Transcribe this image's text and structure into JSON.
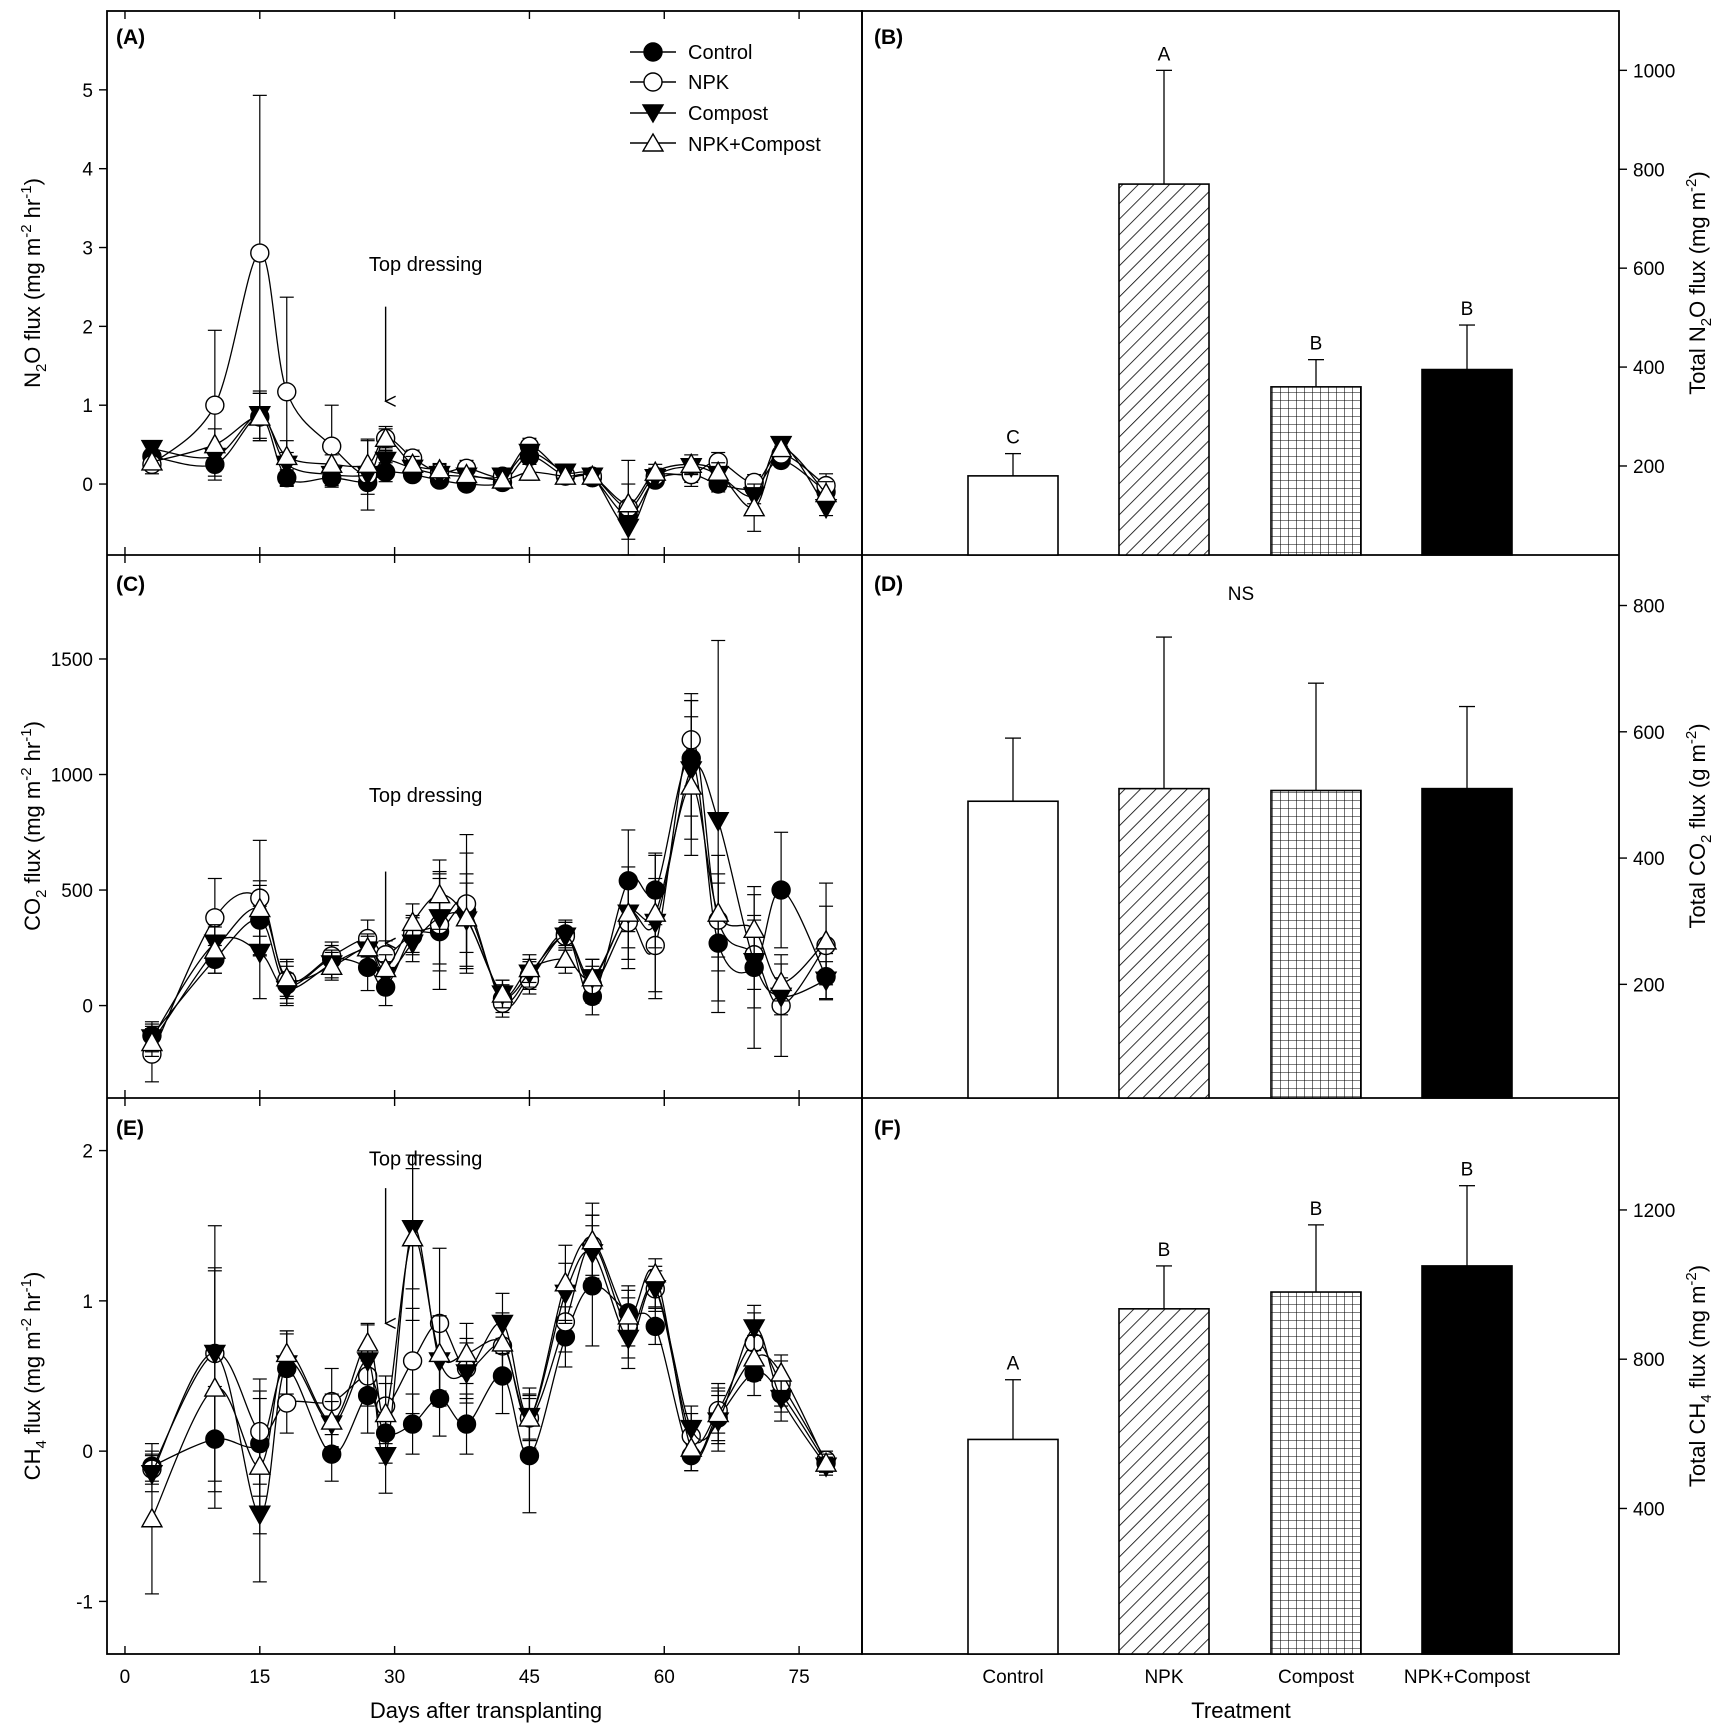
{
  "figure": {
    "x_axis_label": "Days after transplanting",
    "treatment_axis_label": "Treatment",
    "treatments": [
      "Control",
      "NPK",
      "Compost",
      "NPK+Compost"
    ],
    "annotation": "Top dressing",
    "legend": [
      {
        "name": "Control",
        "marker": "filled-circle"
      },
      {
        "name": "NPK",
        "marker": "open-circle"
      },
      {
        "name": "Compost",
        "marker": "filled-triangle-down"
      },
      {
        "name": "NPK+Compost",
        "marker": "open-triangle-up"
      }
    ]
  },
  "chart_data": [
    {
      "panel": "(A)",
      "type": "line",
      "ylabel": "N2O flux (mg m-2 hr-1)",
      "xlim": [
        -2,
        82
      ],
      "ylim": [
        -0.9,
        6
      ],
      "xticks": [
        0,
        15,
        30,
        45,
        60,
        75
      ],
      "yticks": [
        0,
        1,
        2,
        3,
        4,
        5
      ],
      "annotation": {
        "text": "Top dressing",
        "x": 29,
        "y_text": 2.7,
        "y_arrow_top": 2.25,
        "y_arrow_tip": 1.05
      },
      "x": [
        3,
        10,
        15,
        18,
        23,
        27,
        29,
        32,
        35,
        38,
        42,
        45,
        49,
        52,
        56,
        59,
        63,
        66,
        70,
        73,
        78
      ],
      "series": [
        {
          "name": "Control",
          "marker": "filled-circle",
          "values": [
            0.35,
            0.25,
            0.85,
            0.08,
            0.08,
            0.02,
            0.15,
            0.12,
            0.05,
            0.0,
            0.02,
            0.35,
            0.1,
            0.08,
            -0.4,
            0.05,
            0.12,
            0.0,
            -0.05,
            0.3,
            -0.1
          ],
          "errors": [
            0.08,
            0.15,
            0.3,
            0.1,
            0.1,
            0.15,
            0.12,
            0.08,
            0.08,
            0.08,
            0.08,
            0.1,
            0.08,
            0.08,
            0.1,
            0.08,
            0.1,
            0.1,
            0.08,
            0.08,
            0.1
          ]
        },
        {
          "name": "NPK",
          "marker": "open-circle",
          "values": [
            0.25,
            1.0,
            2.93,
            1.17,
            0.48,
            0.12,
            0.58,
            0.33,
            0.15,
            0.2,
            0.1,
            0.48,
            0.12,
            0.1,
            -0.3,
            0.1,
            0.12,
            0.28,
            0.02,
            0.38,
            -0.02
          ],
          "errors": [
            0.12,
            0.95,
            2.0,
            1.2,
            0.52,
            0.45,
            0.15,
            0.1,
            0.1,
            0.1,
            0.08,
            0.1,
            0.08,
            0.08,
            0.6,
            0.1,
            0.15,
            0.12,
            0.1,
            0.1,
            0.15
          ]
        },
        {
          "name": "Compost",
          "marker": "filled-triangle-down",
          "values": [
            0.45,
            0.35,
            0.88,
            0.25,
            0.12,
            0.12,
            0.3,
            0.2,
            0.12,
            0.1,
            0.1,
            0.4,
            0.15,
            0.1,
            -0.55,
            0.08,
            0.22,
            0.12,
            -0.15,
            0.5,
            -0.3
          ],
          "errors": [
            0.08,
            0.1,
            0.3,
            0.15,
            0.1,
            0.1,
            0.12,
            0.08,
            0.08,
            0.08,
            0.08,
            0.1,
            0.08,
            0.08,
            0.15,
            0.08,
            0.1,
            0.1,
            0.1,
            0.08,
            0.1
          ]
        },
        {
          "name": "NPK+Compost",
          "marker": "open-triangle-up",
          "values": [
            0.28,
            0.5,
            0.85,
            0.35,
            0.25,
            0.25,
            0.58,
            0.25,
            0.18,
            0.12,
            0.05,
            0.15,
            0.1,
            0.1,
            -0.25,
            0.15,
            0.25,
            0.15,
            -0.3,
            0.45,
            -0.12
          ],
          "errors": [
            0.1,
            0.2,
            0.3,
            0.2,
            0.12,
            0.3,
            0.12,
            0.1,
            0.08,
            0.08,
            0.08,
            0.1,
            0.08,
            0.08,
            0.25,
            0.1,
            0.12,
            0.12,
            0.3,
            0.1,
            0.15
          ]
        }
      ]
    },
    {
      "panel": "(B)",
      "type": "bar",
      "ylabel": "Total N2O flux (mg m-2)",
      "categories": [
        "Control",
        "NPK",
        "Compost",
        "NPK+Compost"
      ],
      "values": [
        180,
        770,
        360,
        395
      ],
      "errors": [
        45,
        230,
        55,
        90
      ],
      "significance": [
        "C",
        "A",
        "B",
        "B"
      ],
      "ylim": [
        20,
        1120
      ],
      "yticks": [
        200,
        400,
        600,
        800,
        1000
      ],
      "patterns": [
        "white",
        "diag",
        "grid",
        "black"
      ]
    },
    {
      "panel": "(C)",
      "type": "line",
      "ylabel": "CO2 flux (mg m-2 hr-1)",
      "xlim": [
        -2,
        82
      ],
      "ylim": [
        -400,
        1950
      ],
      "xticks": [
        0,
        15,
        30,
        45,
        60,
        75
      ],
      "yticks": [
        0,
        500,
        1000,
        1500
      ],
      "annotation": {
        "text": "Top dressing",
        "x": 29,
        "y_text": 880,
        "y_arrow_top": 580,
        "y_arrow_tip": 270
      },
      "x": [
        3,
        10,
        15,
        18,
        23,
        27,
        29,
        32,
        35,
        38,
        42,
        45,
        49,
        52,
        56,
        59,
        63,
        66,
        70,
        73,
        78
      ],
      "series": [
        {
          "name": "Control",
          "marker": "filled-circle",
          "values": [
            -130,
            200,
            370,
            90,
            200,
            165,
            80,
            300,
            320,
            410,
            30,
            130,
            310,
            40,
            540,
            500,
            1070,
            270,
            165,
            500,
            125
          ],
          "errors": [
            60,
            60,
            150,
            80,
            60,
            100,
            80,
            80,
            250,
            250,
            60,
            60,
            60,
            80,
            220,
            150,
            250,
            300,
            350,
            250,
            100
          ]
        },
        {
          "name": "NPK",
          "marker": "open-circle",
          "values": [
            -210,
            380,
            465,
            110,
            215,
            290,
            220,
            310,
            350,
            440,
            10,
            110,
            300,
            90,
            360,
            260,
            1150,
            370,
            220,
            0,
            260
          ],
          "errors": [
            120,
            170,
            250,
            80,
            60,
            80,
            60,
            80,
            200,
            300,
            60,
            60,
            60,
            80,
            200,
            230,
            200,
            160,
            150,
            220,
            170
          ]
        },
        {
          "name": "Compost",
          "marker": "filled-triangle-down",
          "values": [
            -140,
            270,
            230,
            70,
            180,
            240,
            130,
            270,
            380,
            370,
            50,
            140,
            300,
            120,
            400,
            360,
            1020,
            800,
            190,
            40,
            110
          ],
          "errors": [
            60,
            80,
            200,
            70,
            60,
            60,
            60,
            80,
            200,
            200,
            60,
            60,
            60,
            80,
            200,
            300,
            300,
            780,
            200,
            80,
            80
          ]
        },
        {
          "name": "NPK+Compost",
          "marker": "open-triangle-up",
          "values": [
            -160,
            240,
            420,
            120,
            170,
            250,
            160,
            360,
            480,
            380,
            50,
            160,
            200,
            120,
            400,
            400,
            950,
            400,
            330,
            100,
            280
          ],
          "errors": [
            60,
            100,
            120,
            80,
            60,
            60,
            60,
            80,
            150,
            150,
            60,
            60,
            60,
            80,
            150,
            150,
            300,
            250,
            150,
            80,
            250
          ]
        }
      ]
    },
    {
      "panel": "(D)",
      "type": "bar",
      "ylabel": "Total CO2 flux (g m-2)",
      "categories": [
        "Control",
        "NPK",
        "Compost",
        "NPK+Compost"
      ],
      "values": [
        490,
        510,
        507,
        510
      ],
      "errors": [
        100,
        240,
        170,
        130
      ],
      "significance": [
        "NS"
      ],
      "ylim": [
        20,
        880
      ],
      "yticks": [
        200,
        400,
        600,
        800
      ],
      "patterns": [
        "white",
        "diag",
        "grid",
        "black"
      ]
    },
    {
      "panel": "(E)",
      "type": "line",
      "ylabel": "CH4 flux (mg m-2 hr-1)",
      "xlim": [
        -2,
        82
      ],
      "ylim": [
        -1.35,
        2.35
      ],
      "xticks": [
        0,
        15,
        30,
        45,
        60,
        75
      ],
      "yticks": [
        -1,
        0,
        1,
        2
      ],
      "annotation": {
        "text": "Top dressing",
        "x": 29,
        "y_text": 1.9,
        "y_arrow_top": 1.75,
        "y_arrow_tip": 0.85
      },
      "x": [
        3,
        10,
        15,
        18,
        23,
        27,
        29,
        32,
        35,
        38,
        42,
        45,
        49,
        52,
        56,
        59,
        63,
        66,
        70,
        73,
        78
      ],
      "series": [
        {
          "name": "Control",
          "marker": "filled-circle",
          "values": [
            -0.1,
            0.08,
            0.05,
            0.55,
            -0.02,
            0.37,
            0.12,
            0.18,
            0.35,
            0.18,
            0.5,
            -0.03,
            0.76,
            1.1,
            0.92,
            0.83,
            -0.03,
            0.22,
            0.52,
            0.38,
            -0.08
          ],
          "errors": [
            0.1,
            0.35,
            0.35,
            0.25,
            0.18,
            0.25,
            0.2,
            0.2,
            0.25,
            0.2,
            0.25,
            0.38,
            0.2,
            0.4,
            0.15,
            0.12,
            0.1,
            0.15,
            0.15,
            0.12,
            0.06
          ]
        },
        {
          "name": "NPK",
          "marker": "open-circle",
          "values": [
            -0.12,
            0.65,
            0.13,
            0.32,
            0.33,
            0.5,
            0.3,
            0.6,
            0.85,
            0.55,
            0.7,
            0.22,
            0.86,
            1.37,
            0.82,
            1.08,
            0.1,
            0.27,
            0.72,
            0.45,
            -0.06
          ],
          "errors": [
            0.1,
            0.55,
            0.35,
            0.2,
            0.22,
            0.2,
            0.2,
            0.35,
            0.5,
            0.2,
            0.2,
            0.2,
            0.2,
            0.2,
            0.2,
            0.12,
            0.15,
            0.15,
            0.2,
            0.15,
            0.06
          ]
        },
        {
          "name": "Compost",
          "marker": "filled-triangle-down",
          "values": [
            -0.15,
            0.65,
            -0.42,
            0.58,
            0.18,
            0.6,
            -0.03,
            1.48,
            0.6,
            0.52,
            0.85,
            0.23,
            1.05,
            1.32,
            0.75,
            1.08,
            0.15,
            0.2,
            0.82,
            0.35,
            -0.1
          ],
          "errors": [
            0.12,
            0.85,
            0.45,
            0.2,
            0.15,
            0.25,
            0.25,
            0.4,
            0.3,
            0.2,
            0.2,
            0.15,
            0.2,
            0.25,
            0.2,
            0.15,
            0.15,
            0.2,
            0.15,
            0.15,
            0.06
          ]
        },
        {
          "name": "NPK+Compost",
          "marker": "open-triangle-up",
          "values": [
            -0.45,
            0.42,
            -0.1,
            0.65,
            0.2,
            0.72,
            0.25,
            1.42,
            0.65,
            0.65,
            0.72,
            0.22,
            1.12,
            1.4,
            0.9,
            1.18,
            0.02,
            0.25,
            0.62,
            0.52,
            -0.08
          ],
          "errors": [
            0.5,
            0.8,
            0.45,
            0.15,
            0.18,
            0.12,
            0.2,
            0.55,
            0.25,
            0.2,
            0.2,
            0.15,
            0.25,
            0.25,
            0.2,
            0.1,
            0.15,
            0.2,
            0.15,
            0.12,
            0.06
          ]
        }
      ]
    },
    {
      "panel": "(F)",
      "type": "bar",
      "ylabel": "Total CH4 flux (mg m-2)",
      "categories": [
        "Control",
        "NPK",
        "Compost",
        "NPK+Compost"
      ],
      "values": [
        585,
        935,
        980,
        1050
      ],
      "errors": [
        160,
        115,
        180,
        215
      ],
      "significance": [
        "A",
        "B",
        "B",
        "B"
      ],
      "ylim": [
        10,
        1500
      ],
      "yticks": [
        400,
        800,
        1200
      ],
      "patterns": [
        "white",
        "diag",
        "grid",
        "black"
      ]
    }
  ]
}
